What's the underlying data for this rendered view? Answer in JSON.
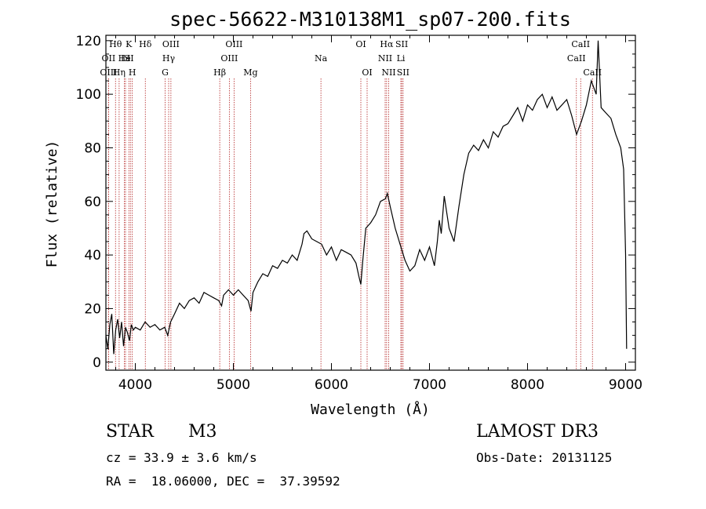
{
  "chart_data": {
    "type": "line",
    "title": "spec-56622-M310138M1_sp07-200.fits",
    "xlabel": "Wavelength (Å)",
    "ylabel": "Flux (relative)",
    "xlim": [
      3700,
      9100
    ],
    "ylim": [
      -3,
      122
    ],
    "xticks": [
      4000,
      5000,
      6000,
      7000,
      8000,
      9000
    ],
    "yticks": [
      0,
      20,
      40,
      60,
      80,
      100,
      120
    ],
    "grid": false,
    "series": [
      {
        "name": "flux",
        "x": [
          3700,
          3720,
          3740,
          3760,
          3780,
          3800,
          3820,
          3840,
          3860,
          3880,
          3900,
          3920,
          3940,
          3960,
          3980,
          4000,
          4050,
          4100,
          4150,
          4200,
          4250,
          4300,
          4330,
          4360,
          4400,
          4450,
          4500,
          4550,
          4600,
          4650,
          4700,
          4750,
          4800,
          4850,
          4880,
          4900,
          4950,
          5000,
          5050,
          5100,
          5150,
          5180,
          5200,
          5250,
          5300,
          5350,
          5400,
          5450,
          5500,
          5550,
          5600,
          5650,
          5700,
          5720,
          5750,
          5800,
          5850,
          5900,
          5950,
          6000,
          6050,
          6100,
          6150,
          6200,
          6250,
          6280,
          6300,
          6320,
          6350,
          6400,
          6450,
          6500,
          6550,
          6570,
          6600,
          6650,
          6700,
          6750,
          6800,
          6850,
          6900,
          6950,
          7000,
          7050,
          7080,
          7100,
          7120,
          7150,
          7200,
          7250,
          7300,
          7350,
          7400,
          7450,
          7500,
          7550,
          7600,
          7650,
          7700,
          7750,
          7800,
          7850,
          7900,
          7950,
          8000,
          8050,
          8100,
          8150,
          8200,
          8250,
          8300,
          8350,
          8400,
          8450,
          8500,
          8550,
          8600,
          8650,
          8700,
          8720,
          8750,
          8800,
          8850,
          8900,
          8950,
          8980,
          9000,
          9010
        ],
        "values": [
          10,
          5,
          14,
          18,
          3,
          12,
          16,
          9,
          15,
          6,
          13,
          11,
          8,
          14,
          12,
          13,
          12,
          15,
          13,
          14,
          12,
          13,
          10,
          15,
          18,
          22,
          20,
          23,
          24,
          22,
          26,
          25,
          24,
          23,
          21,
          25,
          27,
          25,
          27,
          25,
          23,
          19,
          26,
          30,
          33,
          32,
          36,
          35,
          38,
          37,
          40,
          38,
          44,
          48,
          49,
          46,
          45,
          44,
          40,
          43,
          38,
          42,
          41,
          40,
          37,
          32,
          29,
          38,
          50,
          52,
          55,
          60,
          61,
          63,
          58,
          50,
          44,
          38,
          34,
          36,
          42,
          38,
          43,
          36,
          45,
          53,
          48,
          62,
          50,
          45,
          58,
          70,
          78,
          81,
          79,
          83,
          80,
          86,
          84,
          88,
          89,
          92,
          95,
          90,
          96,
          94,
          98,
          100,
          95,
          99,
          94,
          96,
          98,
          92,
          85,
          90,
          96,
          105,
          100,
          120,
          95,
          93,
          91,
          85,
          80,
          72,
          40,
          5
        ]
      }
    ],
    "lines": [
      {
        "label": "Hθ",
        "x": 3798,
        "row": 1
      },
      {
        "label": "OII",
        "x": 3727,
        "row": 2
      },
      {
        "label": "OIII",
        "x": 3727,
        "row": 3
      },
      {
        "label": "K",
        "x": 3934,
        "row": 1
      },
      {
        "label": "He",
        "x": 3889,
        "row": 2
      },
      {
        "label": "IS",
        "x": 3900,
        "row": 2
      },
      {
        "label": "II",
        "x": 3950,
        "row": 2
      },
      {
        "label": "Hη",
        "x": 3835,
        "row": 3
      },
      {
        "label": "H",
        "x": 3969,
        "row": 3
      },
      {
        "label": "Hδ",
        "x": 4102,
        "row": 1
      },
      {
        "label": "OIII",
        "x": 4363,
        "row": 1
      },
      {
        "label": "Hγ",
        "x": 4340,
        "row": 2
      },
      {
        "label": "G",
        "x": 4304,
        "row": 3
      },
      {
        "label": "OIII",
        "x": 5007,
        "row": 1
      },
      {
        "label": "OIII",
        "x": 4959,
        "row": 2
      },
      {
        "label": "Hβ",
        "x": 4861,
        "row": 3
      },
      {
        "label": "Mg",
        "x": 5175,
        "row": 3
      },
      {
        "label": "Na",
        "x": 5893,
        "row": 2
      },
      {
        "label": "OI",
        "x": 6300,
        "row": 1
      },
      {
        "label": "OI",
        "x": 6364,
        "row": 3
      },
      {
        "label": "Hα",
        "x": 6563,
        "row": 1
      },
      {
        "label": "SII",
        "x": 6717,
        "row": 1
      },
      {
        "label": "NII",
        "x": 6548,
        "row": 2
      },
      {
        "label": "Li",
        "x": 6708,
        "row": 2
      },
      {
        "label": "NII",
        "x": 6584,
        "row": 3
      },
      {
        "label": "SII",
        "x": 6731,
        "row": 3
      },
      {
        "label": "CaII",
        "x": 8542,
        "row": 1
      },
      {
        "label": "CaII",
        "x": 8498,
        "row": 2
      },
      {
        "label": "CaII",
        "x": 8662,
        "row": 3
      }
    ]
  },
  "info": {
    "object_class": "STAR",
    "subclass": "M3",
    "survey": "LAMOST DR3",
    "redshift_line": "cz = 33.9 ± 3.6 km/s",
    "obs_date_line": "Obs-Date: 20131125",
    "coords_line": "RA =  18.06000, DEC =  37.39592"
  },
  "colors": {
    "spectrum": "#000000",
    "marker_lines": "#b22222",
    "axes": "#000000"
  }
}
